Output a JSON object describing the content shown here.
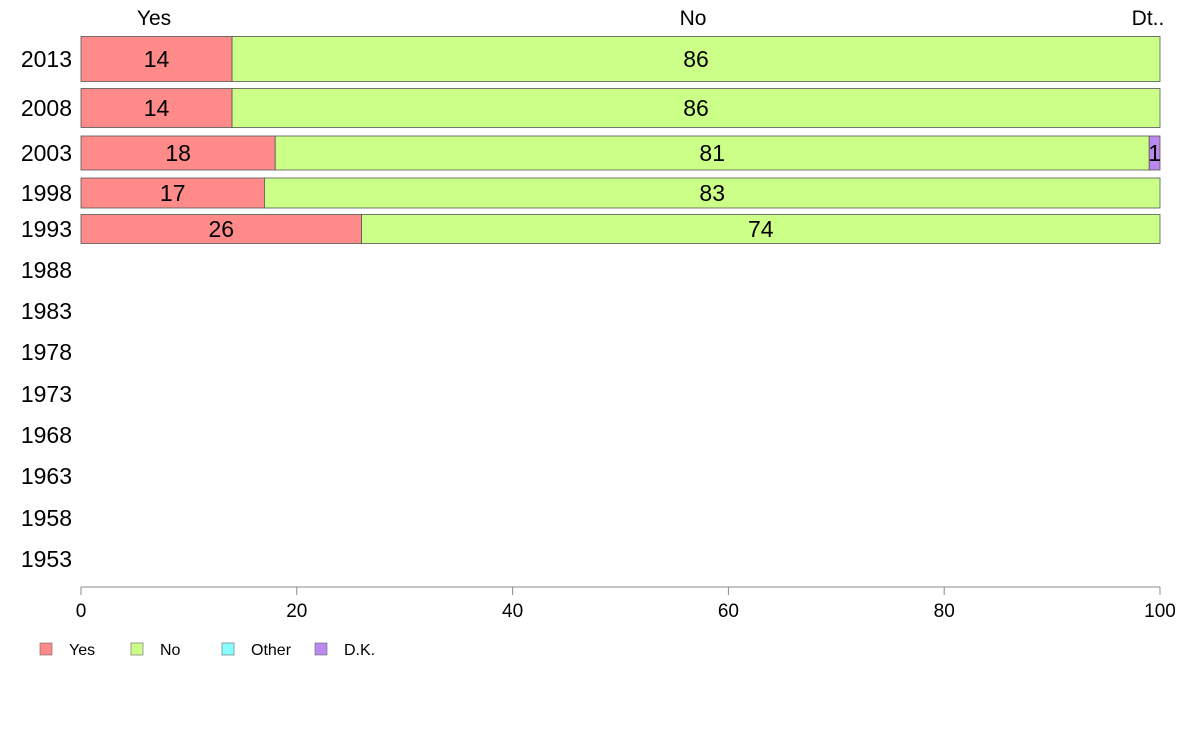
{
  "chart_data": {
    "type": "bar",
    "orientation": "horizontal",
    "stacked": true,
    "categories": [
      "2013",
      "2008",
      "2003",
      "1998",
      "1993",
      "1988",
      "1983",
      "1978",
      "1973",
      "1968",
      "1963",
      "1958",
      "1953"
    ],
    "series": [
      {
        "name": "Yes",
        "color": "#ff8a8a",
        "values": [
          14,
          14,
          18,
          17,
          26,
          null,
          null,
          null,
          null,
          null,
          null,
          null,
          null
        ]
      },
      {
        "name": "No",
        "color": "#ccff88",
        "values": [
          86,
          86,
          81,
          83,
          74,
          null,
          null,
          null,
          null,
          null,
          null,
          null,
          null
        ]
      },
      {
        "name": "Other",
        "color": "#88ffff",
        "values": [
          0,
          0,
          0,
          0,
          0,
          null,
          null,
          null,
          null,
          null,
          null,
          null,
          null
        ]
      },
      {
        "name": "D.K.",
        "color": "#bb88ee",
        "values": [
          0,
          0,
          1,
          0,
          0,
          null,
          null,
          null,
          null,
          null,
          null,
          null,
          null
        ]
      }
    ],
    "column_headers": [
      "Yes",
      "No",
      "Dt.."
    ],
    "xlim": [
      0,
      100
    ],
    "xticks": [
      0,
      20,
      40,
      60,
      80,
      100
    ],
    "grid": false,
    "legend": "bottom-left",
    "title": "",
    "xlabel": "",
    "ylabel": ""
  }
}
